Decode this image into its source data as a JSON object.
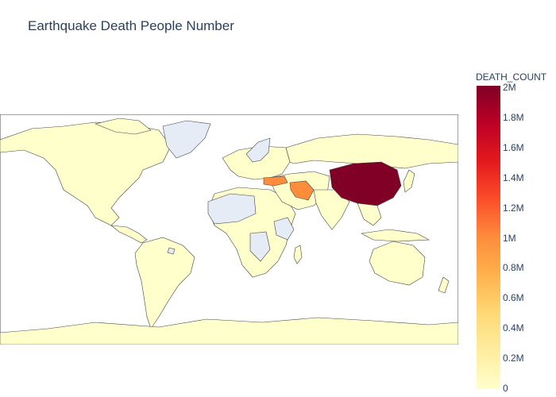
{
  "title": "Earthquake Death People Number",
  "colorbar": {
    "title": "DEATH_COUNT",
    "ticks": [
      "0",
      "0.2M",
      "0.4M",
      "0.6M",
      "0.8M",
      "1M",
      "1.2M",
      "1.4M",
      "1.6M",
      "1.8M",
      "2M"
    ],
    "range": [
      0,
      2000000
    ],
    "colors": [
      "#ffffcc",
      "#ffeda0",
      "#fed976",
      "#feb24c",
      "#fd8d3c",
      "#fc4e2a",
      "#e31a1c",
      "#bd0026",
      "#800026"
    ]
  },
  "colors": {
    "default_country": "#ffffcc",
    "no_data": "#e5ecf6",
    "border": "#444444"
  },
  "chart_data": {
    "type": "choropleth",
    "title": "Earthquake Death People Number",
    "value_label": "DEATH_COUNT",
    "range": [
      0,
      2000000
    ],
    "regions": [
      {
        "name": "China",
        "value": 2000000
      },
      {
        "name": "Iran",
        "value": 1050000
      },
      {
        "name": "Turkey",
        "value": 950000
      }
    ]
  }
}
